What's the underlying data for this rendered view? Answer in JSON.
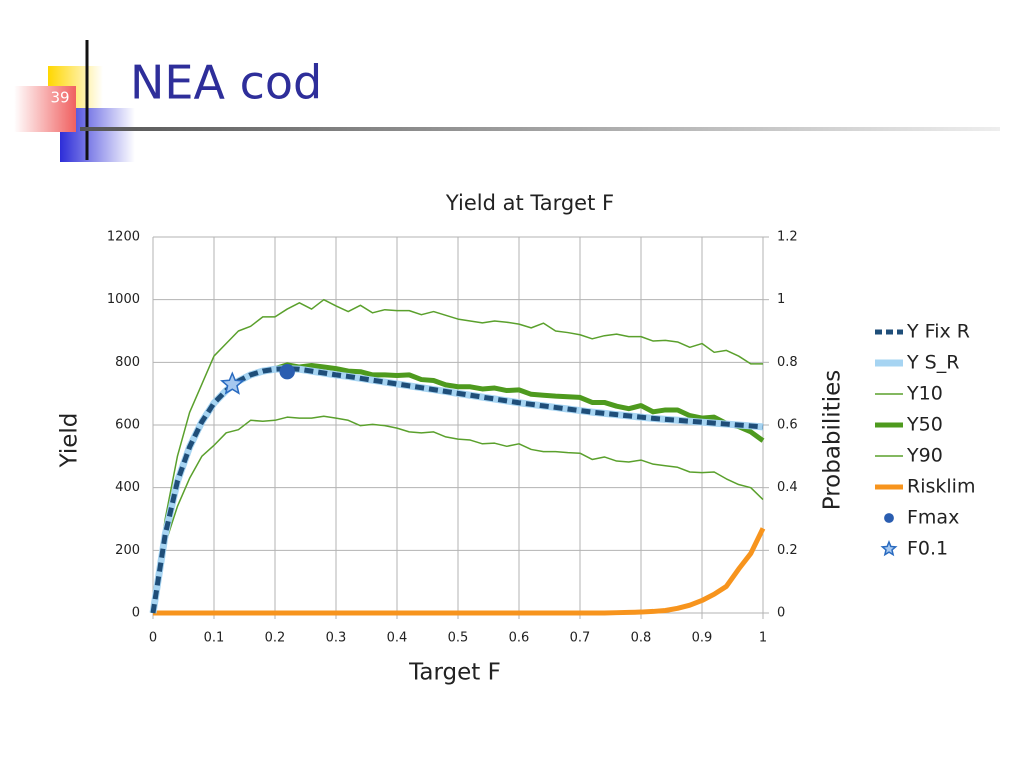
{
  "slide": {
    "number": "39",
    "title": "NEA cod"
  },
  "chart_data": {
    "type": "line",
    "title": "Yield at Target F",
    "xlabel": "Target F",
    "ylabel": "Yield",
    "y2label": "Probabilities",
    "x": [
      0,
      0.02,
      0.04,
      0.06,
      0.08,
      0.1,
      0.12,
      0.14,
      0.16,
      0.18,
      0.2,
      0.22,
      0.24,
      0.26,
      0.28,
      0.3,
      0.32,
      0.34,
      0.36,
      0.38,
      0.4,
      0.42,
      0.44,
      0.46,
      0.48,
      0.5,
      0.52,
      0.54,
      0.56,
      0.58,
      0.6,
      0.62,
      0.64,
      0.66,
      0.68,
      0.7,
      0.72,
      0.74,
      0.76,
      0.78,
      0.8,
      0.82,
      0.84,
      0.86,
      0.88,
      0.9,
      0.92,
      0.94,
      0.96,
      0.98,
      1
    ],
    "xlim": [
      0,
      1
    ],
    "xticks": [
      0,
      0.1,
      0.2,
      0.3,
      0.4,
      0.5,
      0.6,
      0.7,
      0.8,
      0.9,
      1
    ],
    "ylim": [
      0,
      1200
    ],
    "yticks": [
      0,
      200,
      400,
      600,
      800,
      1000,
      1200
    ],
    "y2lim": [
      0,
      1.2
    ],
    "y2ticks": [
      0,
      0.2,
      0.4,
      0.6,
      0.8,
      1,
      1.2
    ],
    "grid": true,
    "legend": "right",
    "series": [
      {
        "name": "Y Fix R",
        "color": "#1f4e79",
        "style": "dashed",
        "values": [
          0,
          250,
          420,
          530,
          610,
          670,
          710,
          740,
          760,
          772,
          778,
          780,
          778,
          772,
          766,
          760,
          755,
          749,
          743,
          737,
          731,
          725,
          719,
          713,
          707,
          701,
          695,
          689,
          683,
          677,
          671,
          666,
          661,
          656,
          651,
          646,
          641,
          637,
          633,
          629,
          625,
          621,
          618,
          615,
          612,
          609,
          606,
          603,
          600,
          597,
          594
        ]
      },
      {
        "name": "Y S_R",
        "color": "#a6d4f2",
        "style": "wide",
        "values": [
          0,
          250,
          420,
          530,
          610,
          670,
          710,
          740,
          760,
          772,
          778,
          780,
          778,
          772,
          766,
          760,
          755,
          749,
          743,
          737,
          731,
          725,
          719,
          713,
          707,
          701,
          695,
          689,
          683,
          677,
          671,
          666,
          661,
          656,
          651,
          646,
          641,
          637,
          633,
          629,
          625,
          621,
          618,
          615,
          612,
          609,
          606,
          603,
          600,
          597,
          594
        ]
      },
      {
        "name": "Y10",
        "color": "#5aa02c",
        "style": "thin",
        "values": [
          0,
          300,
          500,
          640,
          730,
          820,
          860,
          900,
          915,
          945,
          945,
          970,
          990,
          970,
          1000,
          980,
          962,
          982,
          958,
          968,
          965,
          965,
          952,
          962,
          950,
          938,
          932,
          926,
          932,
          928,
          922,
          910,
          925,
          900,
          895,
          888,
          875,
          885,
          890,
          882,
          882,
          868,
          870,
          865,
          848,
          860,
          832,
          838,
          820,
          795,
          795
        ]
      },
      {
        "name": "Y50",
        "color": "#4e9a1e",
        "style": "thick",
        "values": [
          0,
          250,
          420,
          530,
          610,
          670,
          710,
          740,
          760,
          772,
          780,
          792,
          785,
          790,
          785,
          780,
          772,
          770,
          760,
          760,
          758,
          760,
          745,
          742,
          728,
          722,
          722,
          715,
          718,
          710,
          712,
          698,
          695,
          692,
          690,
          688,
          672,
          672,
          660,
          652,
          662,
          642,
          648,
          648,
          630,
          622,
          625,
          605,
          595,
          578,
          550
        ]
      },
      {
        "name": "Y90",
        "color": "#5aa02c",
        "style": "thin",
        "values": [
          0,
          220,
          340,
          430,
          500,
          535,
          575,
          585,
          615,
          612,
          615,
          625,
          622,
          622,
          628,
          622,
          615,
          598,
          602,
          598,
          590,
          578,
          575,
          578,
          562,
          555,
          552,
          540,
          542,
          532,
          540,
          522,
          515,
          515,
          512,
          510,
          490,
          498,
          485,
          482,
          488,
          475,
          470,
          465,
          450,
          448,
          450,
          428,
          410,
          400,
          362
        ]
      },
      {
        "name": "Risklim",
        "color": "#f7941d",
        "style": "thick",
        "axis": "y2",
        "values": [
          0,
          0,
          0,
          0,
          0,
          0,
          0,
          0,
          0,
          0,
          0,
          0,
          0,
          0,
          0,
          0,
          0,
          0,
          0,
          0,
          0,
          0,
          0,
          0,
          0,
          0,
          0,
          0,
          0,
          0,
          0,
          0,
          0,
          0,
          0,
          0,
          0,
          0,
          0.001,
          0.002,
          0.003,
          0.005,
          0.008,
          0.015,
          0.025,
          0.04,
          0.06,
          0.085,
          0.14,
          0.19,
          0.27
        ]
      }
    ],
    "points": [
      {
        "name": "Fmax",
        "color": "#2a5db0",
        "marker": "circle",
        "x": 0.22,
        "y": 770
      },
      {
        "name": "F0.1",
        "color": "#2a6bc0",
        "marker": "star",
        "x": 0.13,
        "y": 730
      }
    ]
  }
}
